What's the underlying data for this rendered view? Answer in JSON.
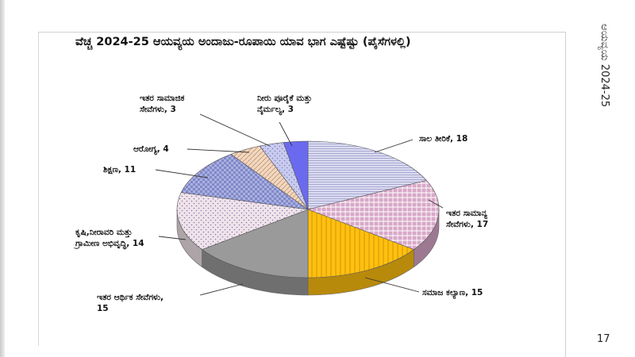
{
  "page": {
    "side_header": "ಆಯವ್ಯಯ 2024-25",
    "page_number": "17"
  },
  "chart_data": {
    "type": "pie",
    "title": "ವೆಚ್ಚ 2024-25 ಆಯವ್ಯಯ ಅಂದಾಜು-ರೂಪಾಯಿ ಯಾವ ಭಾಗ ಎಷ್ಟೆಷ್ಟು (ಪೈಸೆಗಳಲ್ಲಿ)",
    "three_d": true,
    "slices": [
      {
        "label": "ಸಾಲ ತೀರಿಕೆ, 18",
        "value": 18,
        "color": "#dcdcf2",
        "pattern": "hstripe"
      },
      {
        "label": "ಇತರ ಸಾಮಾನ್ಯ ಸೇವೆಗಳು, 17",
        "value": 17,
        "color": "#d8a8c8",
        "pattern": "grid"
      },
      {
        "label": "ಸಮಾಜ ಕಲ್ಯಾಣ, 15",
        "value": 15,
        "color": "#ffc010",
        "pattern": "vstripe"
      },
      {
        "label": "ಇತರ ಆರ್ಥಿಕ ಸೇವೆಗಳು, 15",
        "value": 15,
        "color": "#9a9a9a",
        "pattern": "solid"
      },
      {
        "label": "ಕೃಷಿ,ನೀರಾವರಿ ಮತ್ತು ಗ್ರಾಮೀಣ ಅಭಿವೃದ್ಧಿ, 14",
        "value": 14,
        "color": "#f0e4ea",
        "pattern": "dots"
      },
      {
        "label": "ಶಿಕ್ಷಣ, 11",
        "value": 11,
        "color": "#aab0e0",
        "pattern": "check"
      },
      {
        "label": "ಆರೋಗ್ಯ, 4",
        "value": 4,
        "color": "#f2d8c0",
        "pattern": "diag"
      },
      {
        "label": "ಇತರ ಸಾಮಾಜಿಕ ಸೇವೆಗಳು, 3",
        "value": 3,
        "color": "#c8ccf0",
        "pattern": "dots"
      },
      {
        "label": "ನೀರು ಪೂರೈಕೆ ಮತ್ತು ನೈರ್ಮಲ್ಯ, 3",
        "value": 3,
        "color": "#6a6af0",
        "pattern": "solid"
      }
    ]
  }
}
